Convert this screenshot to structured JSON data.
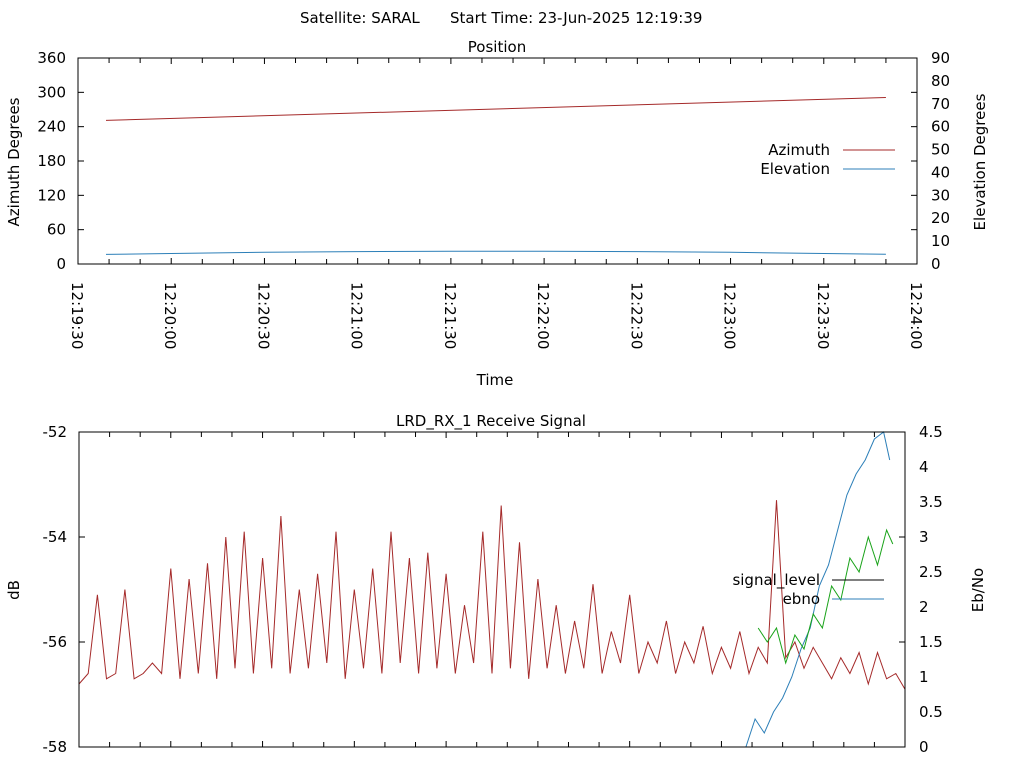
{
  "header": {
    "satellite_label": "Satellite: SARAL",
    "start_time_label": "Start Time: 23-Jun-2025 12:19:39"
  },
  "chart_data": [
    {
      "type": "line",
      "title": "Position",
      "xlabel": "Time",
      "ylabel": "Azimuth Degrees",
      "y2label": "Elevation Degrees",
      "x_ticks": [
        "12:19:30",
        "12:20:00",
        "12:20:30",
        "12:21:00",
        "12:21:30",
        "12:22:00",
        "12:22:30",
        "12:23:00",
        "12:23:30",
        "12:24:00"
      ],
      "x_range_seconds": [
        0,
        270
      ],
      "ylim": [
        0,
        360
      ],
      "y_ticks": [
        0,
        60,
        120,
        180,
        240,
        300,
        360
      ],
      "y2lim": [
        0,
        90
      ],
      "y2_ticks": [
        0,
        10,
        20,
        30,
        40,
        50,
        60,
        70,
        80,
        90
      ],
      "legend_position": "right",
      "series": [
        {
          "name": "Azimuth",
          "color": "#a52a2a",
          "axis": "y",
          "x": [
            9,
            260
          ],
          "values": [
            251,
            291
          ]
        },
        {
          "name": "Elevation",
          "color": "#2c7fb8",
          "axis": "y2",
          "x": [
            9,
            30,
            60,
            90,
            120,
            150,
            180,
            210,
            240,
            260
          ],
          "values": [
            4.2,
            4.6,
            5.1,
            5.4,
            5.6,
            5.6,
            5.4,
            5.1,
            4.6,
            4.3
          ]
        }
      ]
    },
    {
      "type": "line",
      "title": "LRD_RX_1 Receive Signal",
      "ylabel": "dB",
      "y2label": "Eb/No",
      "x_range_seconds": [
        0,
        270
      ],
      "ylim": [
        -58,
        -52
      ],
      "y_ticks": [
        -58,
        -56,
        -54,
        -52
      ],
      "y2lim": [
        0,
        4.5
      ],
      "y2_ticks": [
        0,
        0.5,
        1,
        1.5,
        2,
        2.5,
        3,
        3.5,
        4,
        4.5
      ],
      "legend_position": "right",
      "series": [
        {
          "name": "signal_level",
          "color": "#a52a2a",
          "axis": "y",
          "x": [
            0,
            3,
            6,
            9,
            12,
            15,
            18,
            21,
            24,
            27,
            30,
            33,
            36,
            39,
            42,
            45,
            48,
            51,
            54,
            57,
            60,
            63,
            66,
            69,
            72,
            75,
            78,
            81,
            84,
            87,
            90,
            93,
            96,
            99,
            102,
            105,
            108,
            111,
            114,
            117,
            120,
            123,
            126,
            129,
            132,
            135,
            138,
            141,
            144,
            147,
            150,
            153,
            156,
            159,
            162,
            165,
            168,
            171,
            174,
            177,
            180,
            183,
            186,
            189,
            192,
            195,
            198,
            201,
            204,
            207,
            210,
            213,
            216,
            219,
            222,
            225,
            228,
            231,
            234,
            237,
            240,
            243,
            246,
            249,
            252,
            255,
            258,
            261,
            264,
            267,
            270
          ],
          "values": [
            -56.8,
            -56.6,
            -55.1,
            -56.7,
            -56.6,
            -55.0,
            -56.7,
            -56.6,
            -56.4,
            -56.6,
            -54.6,
            -56.7,
            -54.8,
            -56.6,
            -54.5,
            -56.7,
            -54.0,
            -56.5,
            -53.9,
            -56.6,
            -54.4,
            -56.5,
            -53.6,
            -56.6,
            -55.0,
            -56.5,
            -54.7,
            -56.4,
            -53.9,
            -56.7,
            -55.0,
            -56.5,
            -54.6,
            -56.6,
            -53.9,
            -56.4,
            -54.4,
            -56.6,
            -54.3,
            -56.5,
            -54.7,
            -56.6,
            -55.3,
            -56.4,
            -53.9,
            -56.6,
            -53.4,
            -56.5,
            -54.1,
            -56.7,
            -54.8,
            -56.5,
            -55.3,
            -56.6,
            -55.6,
            -56.5,
            -54.9,
            -56.6,
            -55.8,
            -56.4,
            -55.1,
            -56.6,
            -56.0,
            -56.4,
            -55.6,
            -56.6,
            -56.0,
            -56.4,
            -55.7,
            -56.6,
            -56.1,
            -56.5,
            -55.8,
            -56.6,
            -56.1,
            -56.4,
            -53.3,
            -56.3,
            -56.0,
            -56.5,
            -56.1,
            -56.4,
            -56.7,
            -56.3,
            -56.6,
            -56.2,
            -56.8,
            -56.2,
            -56.7,
            -56.6,
            -56.9
          ]
        },
        {
          "name": "ebno",
          "color": "#2c7fb8",
          "axis": "y2",
          "x": [
            218,
            221,
            224,
            227,
            230,
            233,
            236,
            239,
            242,
            245,
            248,
            251,
            254,
            257,
            260,
            263,
            265
          ],
          "values": [
            0.0,
            0.4,
            0.2,
            0.5,
            0.7,
            1.0,
            1.4,
            1.7,
            2.3,
            2.6,
            3.1,
            3.6,
            3.9,
            4.1,
            4.4,
            4.5,
            4.1
          ]
        },
        {
          "name": "",
          "color": "#19a319",
          "axis": "y2",
          "x": [
            222,
            225,
            228,
            231,
            234,
            237,
            240,
            243,
            246,
            249,
            252,
            255,
            258,
            261,
            264,
            266
          ],
          "values": [
            1.7,
            1.5,
            1.7,
            1.2,
            1.6,
            1.4,
            1.9,
            1.7,
            2.3,
            2.1,
            2.7,
            2.5,
            3.0,
            2.6,
            3.1,
            2.9
          ]
        }
      ]
    }
  ]
}
